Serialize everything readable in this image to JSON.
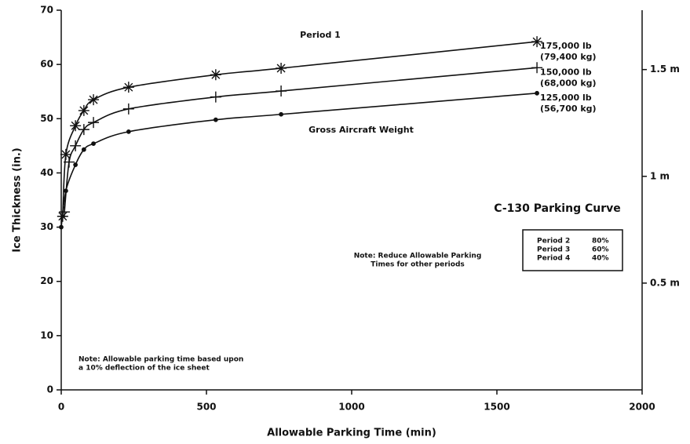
{
  "chart_data": {
    "type": "line",
    "title": "C-130 Parking Curve",
    "xlabel": "Allowable Parking Time (min)",
    "ylabel": "Ice Thickness (in.)",
    "xlim": [
      0,
      2000
    ],
    "xticks": [
      0,
      500,
      1000,
      1500,
      2000
    ],
    "ylim": [
      0,
      70
    ],
    "yticks": [
      0,
      10,
      20,
      30,
      40,
      50,
      60,
      70
    ],
    "y2lim": [
      0,
      1.778
    ],
    "y2ticks": [
      {
        "value": 0.5,
        "label": "0.5 m"
      },
      {
        "value": 1,
        "label": "1 m"
      },
      {
        "value": 1.5,
        "label": "1.5 m"
      }
    ],
    "series": [
      {
        "name": "175,000 lb",
        "subname": "(79,400 kg)",
        "marker": "asterisk",
        "color": "#111111",
        "x": [
          5,
          16,
          49,
          78,
          111,
          232,
          532,
          757,
          1638
        ],
        "values": [
          32,
          43.4,
          48.7,
          51.5,
          53.5,
          55.8,
          58.1,
          59.3,
          64.2
        ]
      },
      {
        "name": "150,000 lb",
        "subname": "(68,000 kg)",
        "marker": "plus",
        "color": "#111111",
        "x": [
          11,
          27,
          49,
          78,
          111,
          232,
          532,
          757,
          1638
        ],
        "values": [
          32.8,
          42,
          45,
          48,
          49.3,
          51.8,
          54,
          55.1,
          59.4
        ]
      },
      {
        "name": "125,000 lb",
        "subname": "(56,700 kg)",
        "marker": "dot",
        "color": "#111111",
        "x": [
          0,
          16,
          49,
          78,
          111,
          232,
          532,
          757,
          1638
        ],
        "values": [
          30,
          36.7,
          41.5,
          44.3,
          45.4,
          47.6,
          49.8,
          50.8,
          54.7
        ]
      }
    ],
    "annotations": {
      "period1": "Period 1",
      "gross": "Gross Aircraft Weight",
      "reduce": [
        "Note: Reduce Allowable Parking",
        "Times for other periods"
      ],
      "periods": [
        [
          "Period 2",
          "80%"
        ],
        [
          "Period 3",
          "60%"
        ],
        [
          "Period 4",
          "40%"
        ]
      ],
      "basis": [
        "Note: Allowable parking time based upon",
        "a 10% deflection of the ice sheet"
      ]
    }
  }
}
